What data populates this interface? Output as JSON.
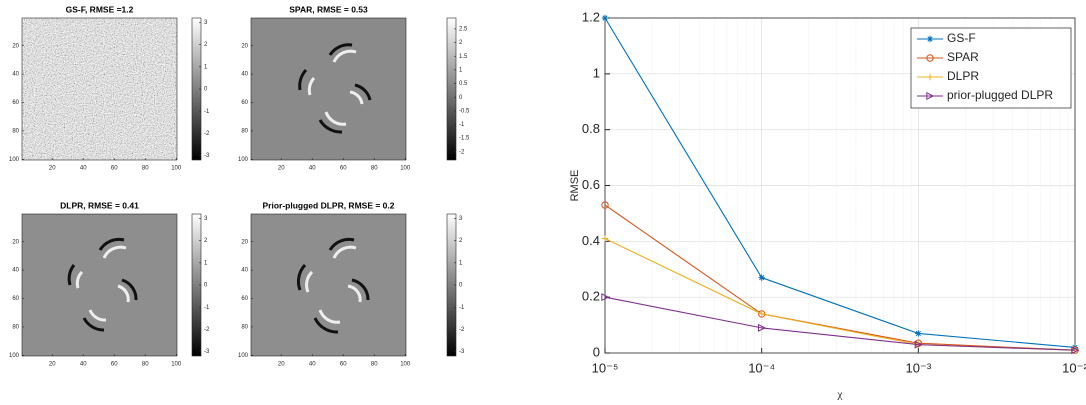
{
  "chart_data": [
    {
      "type": "image",
      "title": "GS-F, RMSE =1.2",
      "xlim": [
        0.5,
        100.5
      ],
      "ylim": [
        0.5,
        100.5
      ],
      "y_reversed": true,
      "xticks": [
        20,
        40,
        60,
        80,
        100
      ],
      "yticks": [
        20,
        40,
        60,
        80,
        100
      ],
      "colorbar_lim": [
        -3.2,
        3.2
      ],
      "colorbar_ticks": [
        3,
        2,
        1,
        0,
        -1,
        -2,
        -3
      ]
    },
    {
      "type": "image",
      "title": "SPAR, RMSE = 0.53",
      "xlim": [
        0.5,
        100.5
      ],
      "ylim": [
        0.5,
        100.5
      ],
      "y_reversed": true,
      "xticks": [
        20,
        40,
        60,
        80,
        100
      ],
      "yticks": [
        20,
        40,
        60,
        80,
        100
      ],
      "colorbar_lim": [
        -2.3,
        2.9
      ],
      "colorbar_ticks": [
        2.5,
        2,
        1.5,
        1,
        0.5,
        0,
        -0.5,
        -1,
        -1.5,
        -2
      ]
    },
    {
      "type": "image",
      "title": "DLPR, RMSE = 0.41",
      "xlim": [
        0.5,
        100.5
      ],
      "ylim": [
        0.5,
        100.5
      ],
      "y_reversed": true,
      "xticks": [
        20,
        40,
        60,
        80,
        100
      ],
      "yticks": [
        20,
        40,
        60,
        80,
        100
      ],
      "colorbar_lim": [
        -3.2,
        3.2
      ],
      "colorbar_ticks": [
        3,
        2,
        1,
        0,
        -1,
        -2,
        -3
      ]
    },
    {
      "type": "image",
      "title": "Prior-plugged DLPR, RMSE = 0.2",
      "xlim": [
        0.5,
        100.5
      ],
      "ylim": [
        0.5,
        100.5
      ],
      "y_reversed": true,
      "xticks": [
        20,
        40,
        60,
        80,
        100
      ],
      "yticks": [
        20,
        40,
        60,
        80,
        100
      ],
      "colorbar_lim": [
        -3.2,
        3.2
      ],
      "colorbar_ticks": [
        3,
        2,
        1,
        0,
        -1,
        -2,
        -3
      ]
    },
    {
      "type": "line",
      "x_label": "χ",
      "y_label": "RMSE",
      "x_log": true,
      "grid": true,
      "legend": "northeast",
      "x": [
        1e-05,
        0.0001,
        0.001,
        0.01
      ],
      "xlim": [
        1e-05,
        0.01
      ],
      "ylim": [
        0,
        1.2
      ],
      "xticks": [
        {
          "value": 1e-05,
          "label": "10⁻⁵"
        },
        {
          "value": 0.0001,
          "label": "10⁻⁴"
        },
        {
          "value": 0.001,
          "label": "10⁻³"
        },
        {
          "value": 0.01,
          "label": "10⁻²"
        }
      ],
      "yticks": [
        0,
        0.2,
        0.4,
        0.6,
        0.8,
        1,
        1.2
      ],
      "series": [
        {
          "name": "GS-F",
          "color": "#0072BD",
          "marker": "star",
          "values": [
            1.2,
            0.27,
            0.07,
            0.02
          ]
        },
        {
          "name": "SPAR",
          "color": "#D95319",
          "marker": "circle",
          "values": [
            0.53,
            0.14,
            0.035,
            0.01
          ]
        },
        {
          "name": "DLPR",
          "color": "#EDB120",
          "marker": "plus",
          "values": [
            0.41,
            0.14,
            0.03,
            0.01
          ]
        },
        {
          "name": "prior-plugged DLPR",
          "color": "#7E2F8E",
          "marker": "triangle-right",
          "values": [
            0.2,
            0.09,
            0.03,
            0.01
          ]
        }
      ]
    }
  ]
}
